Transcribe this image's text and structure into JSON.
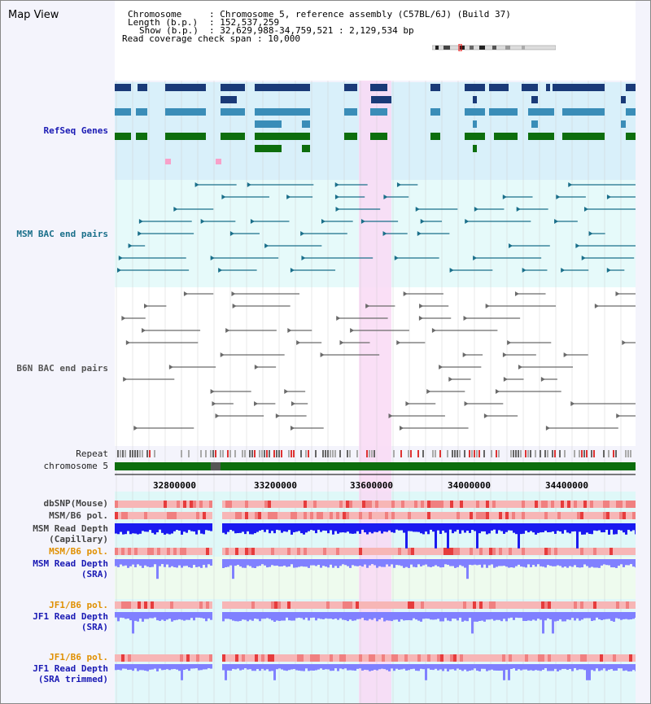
{
  "panel_title": "Map View",
  "header": {
    "chromosome_key": "Chromosome",
    "chromosome_value": ": Chromosome 5, reference assembly (C57BL/6J) (Build 37)",
    "length_key": "Length (b.p.)",
    "length_value": ": 152,537,259",
    "show_key": "Show (b.p.)",
    "show_value": ": 32,629,988-34,759,521 : 2,129,534 bp",
    "coverage_key": "Read coverage check span",
    "coverage_value": ": 10,000"
  },
  "tracks": {
    "refseq_genes": "RefSeq Genes",
    "msm_bac": "MSM BAC end pairs",
    "b6n_bac": "B6N BAC end pairs",
    "repeat": "Repeat",
    "chromosome": "chromosome 5",
    "dbsnp": "dbSNP(Mouse)",
    "msm_b6_pol": "MSM/B6 pol.",
    "msm_depth_cap_1": "MSM Read Depth",
    "msm_depth_cap_2": "(Capillary)",
    "msm_b6_pol_2": "MSM/B6 pol.",
    "msm_depth_sra_1": "MSM Read Depth",
    "msm_depth_sra_2": "(SRA)",
    "jf1_b6_pol": "JF1/B6 pol.",
    "jf1_depth_sra_1": "JF1 Read Depth",
    "jf1_depth_sra_2": "(SRA)",
    "jf1_b6_pol_2": "JF1/B6 pol.",
    "jf1_depth_trim_1": "JF1 Read Depth",
    "jf1_depth_trim_2": "(SRA trimmed)"
  },
  "axis_ticks": [
    "32800000",
    "33200000",
    "33600000",
    "34000000",
    "34400000"
  ],
  "colors": {
    "refseq_bg": "#d9f0fa",
    "msm_bac_bg": "#e6fafa",
    "b6n_bg": "#ffffff",
    "highlight": "#f9d9f4",
    "gene_dark": "#1a3a78",
    "gene_mid": "#3a8db8",
    "gene_green": "#0d6e0d",
    "bac_teal": "#1a6f8a",
    "bac_gray": "#6a6a6a",
    "depth_blue": "#1a1af0",
    "depth_light": "#8080ff"
  }
}
